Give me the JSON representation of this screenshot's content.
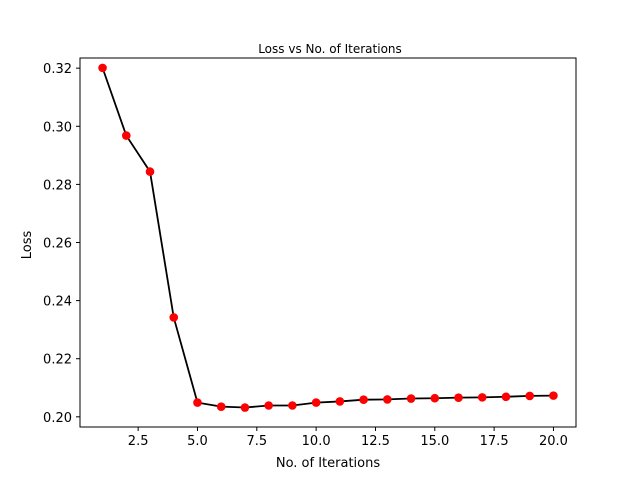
{
  "chart_data": {
    "type": "line",
    "title": "Loss vs No. of Iterations",
    "xlabel": "No. of Iterations",
    "ylabel": "Loss",
    "xlim": [
      0.05,
      20.95
    ],
    "ylim": [
      0.1965,
      0.3235
    ],
    "x_ticks": [
      2.5,
      5.0,
      7.5,
      10.0,
      12.5,
      15.0,
      17.5,
      20.0
    ],
    "x_tick_labels": [
      "2.5",
      "5.0",
      "7.5",
      "10.0",
      "12.5",
      "15.0",
      "17.5",
      "20.0"
    ],
    "y_ticks": [
      0.2,
      0.22,
      0.24,
      0.26,
      0.28,
      0.3,
      0.32
    ],
    "y_tick_labels": [
      "0.20",
      "0.22",
      "0.24",
      "0.26",
      "0.28",
      "0.30",
      "0.32"
    ],
    "grid": false,
    "line_color": "#000000",
    "marker_color": "#ff0000",
    "series": [
      {
        "x": [
          1,
          2,
          3,
          4,
          5,
          6,
          7,
          8,
          9,
          10,
          11,
          12,
          13,
          14,
          15,
          16,
          17,
          18,
          19,
          20
        ],
        "values": [
          0.3201,
          0.2968,
          0.2844,
          0.2342,
          0.2049,
          0.2035,
          0.2032,
          0.2039,
          0.2039,
          0.2049,
          0.2053,
          0.2059,
          0.206,
          0.2063,
          0.2064,
          0.2066,
          0.2067,
          0.2069,
          0.2072,
          0.2073
        ]
      }
    ]
  }
}
